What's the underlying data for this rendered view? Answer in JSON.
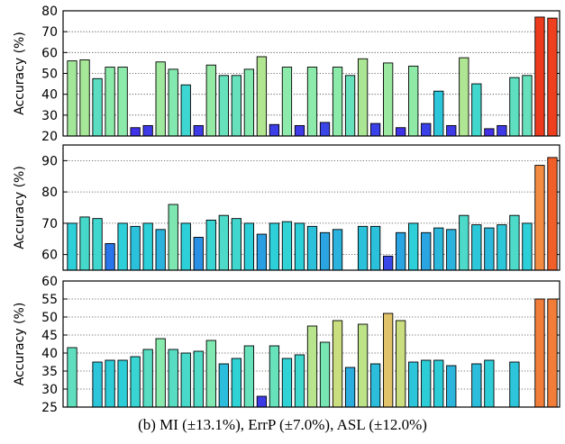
{
  "caption": "(b) MI (±13.1%), ErrP (±7.0%), ASL (±12.0%)",
  "chart_data": [
    {
      "type": "bar",
      "ylabel": "Accuracy (%)",
      "ylim": [
        20,
        80
      ],
      "yticks": [
        20,
        30,
        40,
        50,
        60,
        70,
        80
      ],
      "grid": "horizontal dotted",
      "values": [
        56,
        56.5,
        47.5,
        53,
        53,
        24,
        25,
        55.5,
        52,
        44.5,
        25,
        54,
        49,
        49,
        52,
        58,
        25.5,
        53,
        25,
        53,
        26.5,
        53,
        49,
        57,
        26,
        55,
        24,
        53.5,
        26,
        41.5,
        25,
        57.5,
        45,
        23.5,
        25,
        48,
        49,
        77,
        76.5
      ]
    },
    {
      "type": "bar",
      "ylabel": "Accuracy (%)",
      "ylim": [
        55,
        95
      ],
      "yticks": [
        60,
        70,
        80,
        90
      ],
      "grid": "horizontal dotted",
      "values": [
        70,
        72,
        71.5,
        63.5,
        70,
        69,
        70,
        68,
        76,
        70,
        65.5,
        71,
        72.5,
        71.5,
        70,
        66.5,
        70,
        70.5,
        70,
        69,
        67,
        68,
        null,
        69,
        69,
        59.5,
        67,
        70,
        67,
        68.5,
        68,
        72.5,
        69.5,
        68.5,
        69.5,
        72.5,
        70,
        88.5,
        91
      ]
    },
    {
      "type": "bar",
      "ylabel": "Accuracy (%)",
      "ylim": [
        25,
        60
      ],
      "yticks": [
        25,
        30,
        35,
        40,
        45,
        50,
        55,
        60
      ],
      "grid": "horizontal dotted",
      "values": [
        41.5,
        null,
        37.5,
        38,
        38,
        39,
        41,
        44,
        41,
        40,
        40.5,
        43.5,
        37,
        38.5,
        42,
        28,
        42,
        38.5,
        39.5,
        47.5,
        43,
        49,
        36,
        48,
        37,
        51,
        49,
        37.5,
        38,
        38,
        36.5,
        null,
        37,
        38,
        null,
        37.5,
        null,
        55,
        55
      ]
    }
  ]
}
